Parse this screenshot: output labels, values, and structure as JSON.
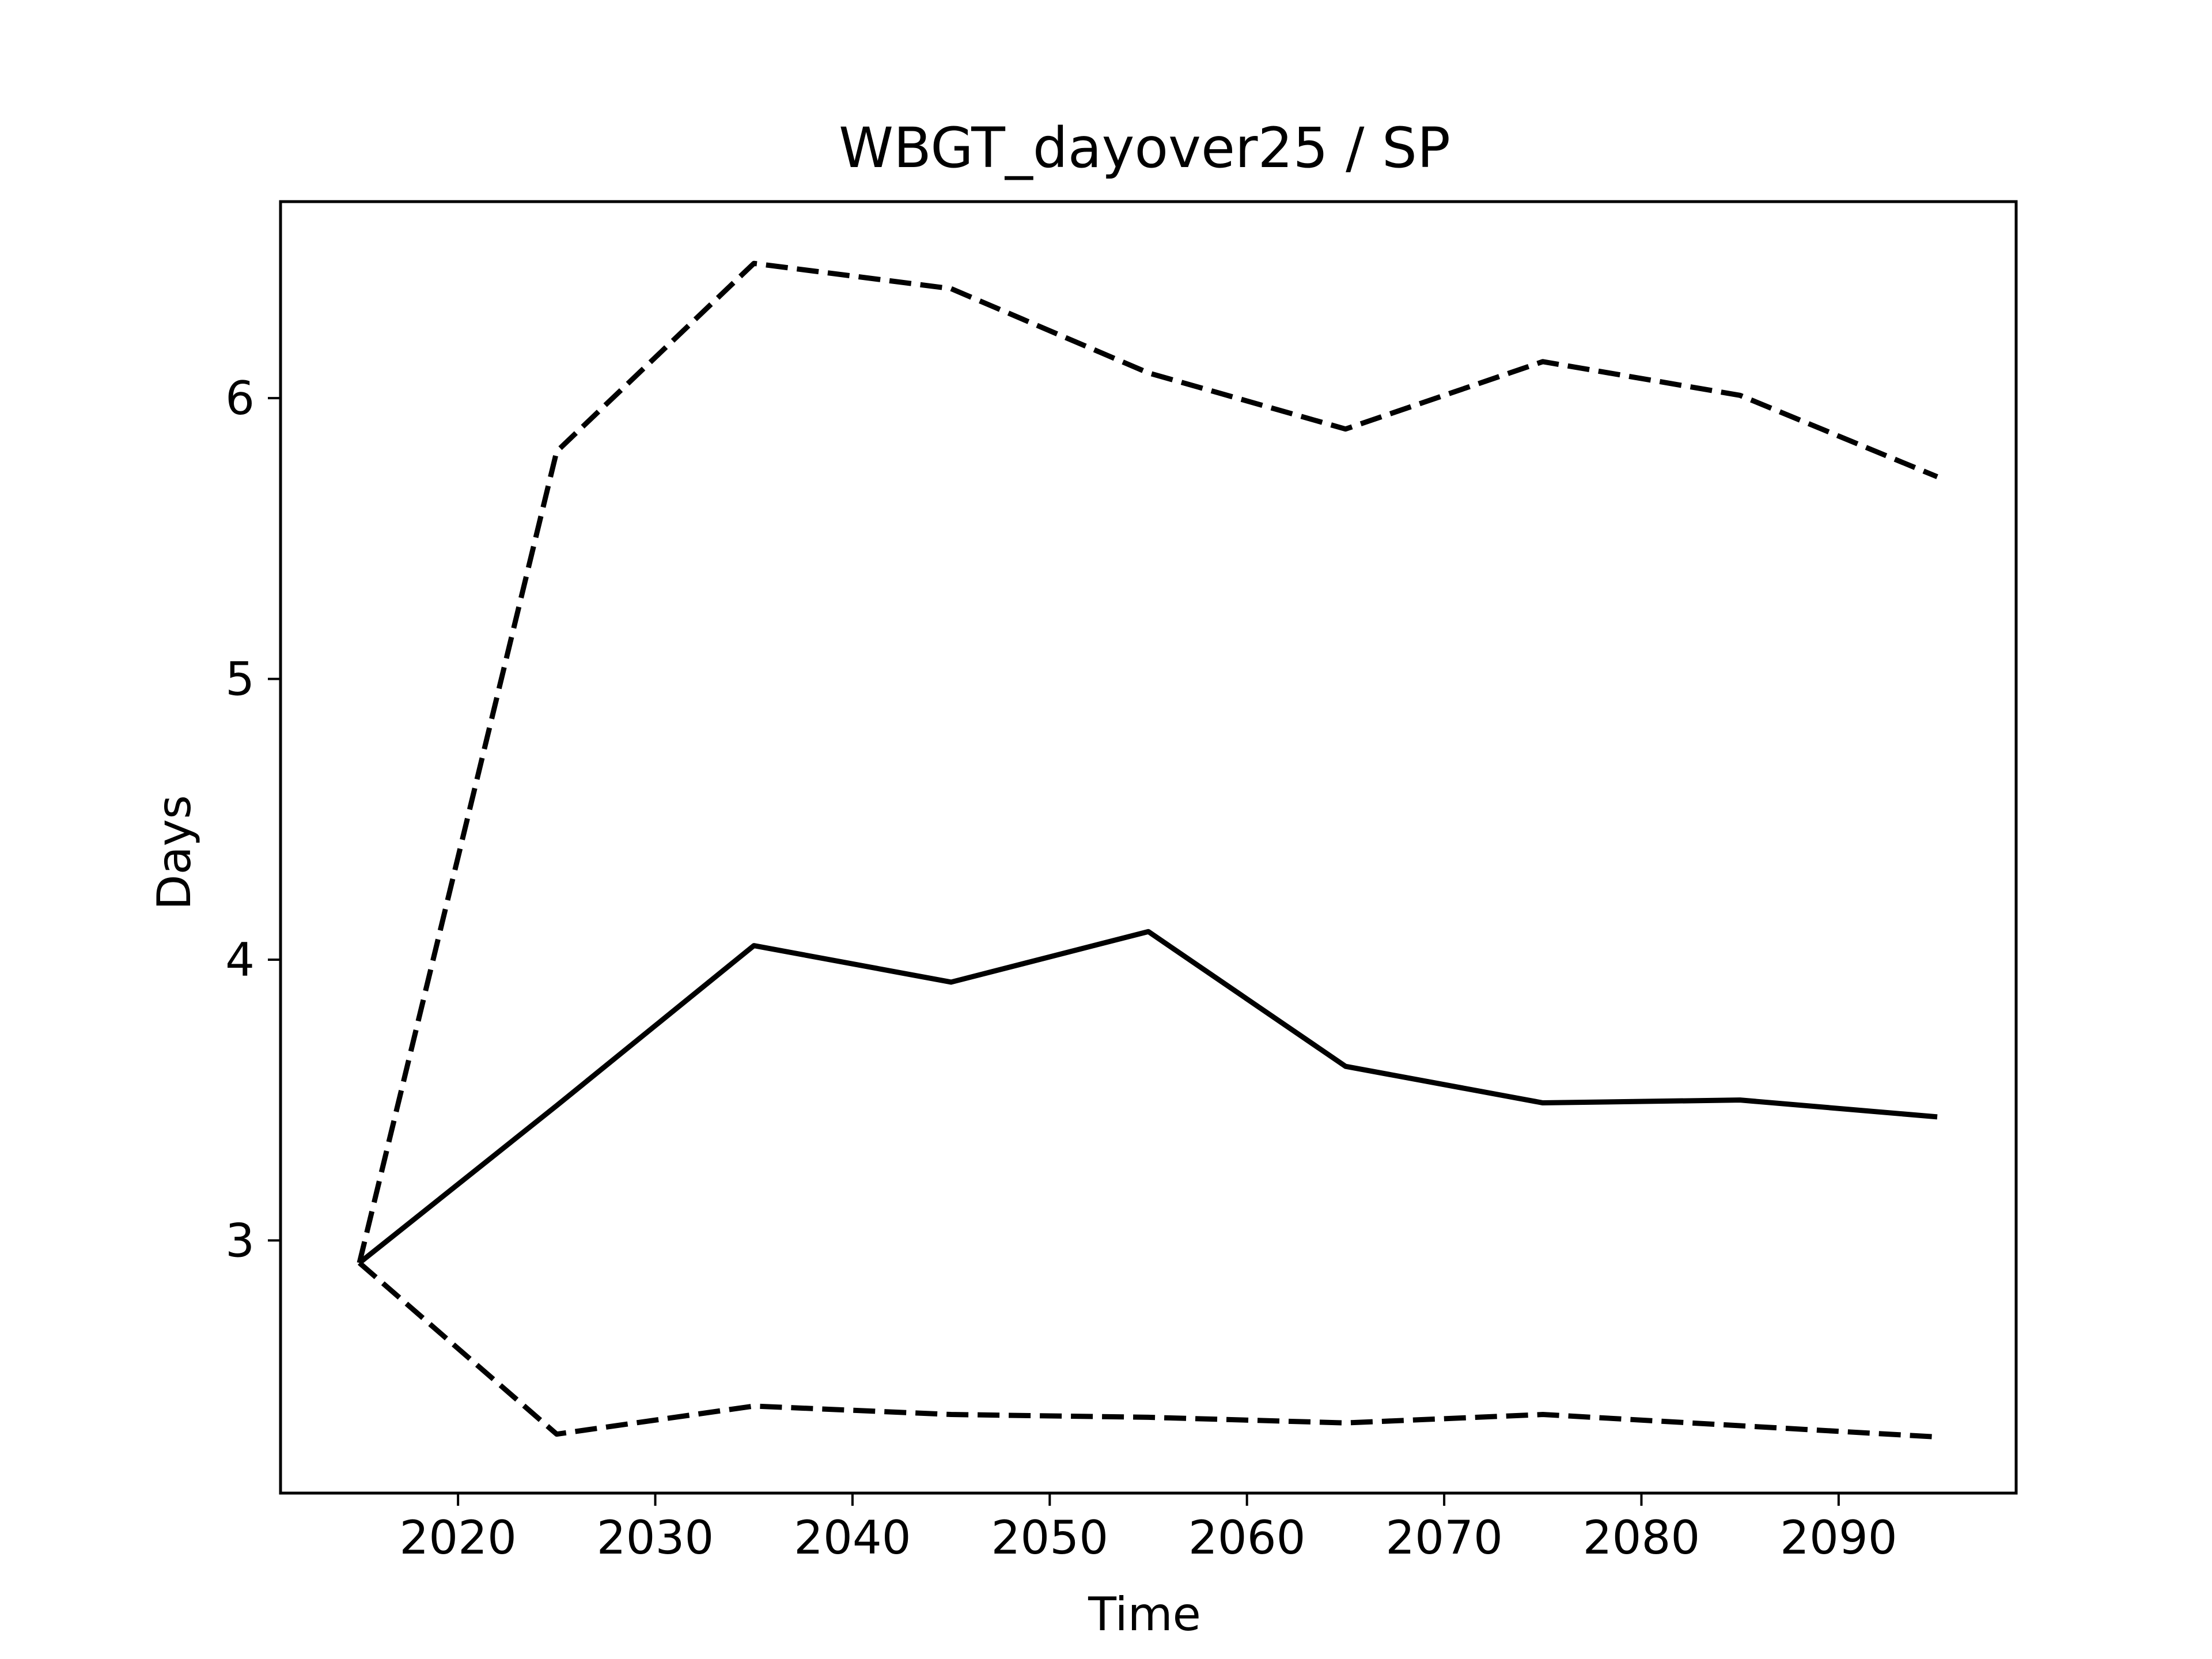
{
  "chart_data": {
    "type": "line",
    "title": "WBGT_dayover25 / SP",
    "xlabel": "Time",
    "ylabel": "Days",
    "xlim": [
      2011,
      2099
    ],
    "ylim": [
      2.1,
      6.7
    ],
    "xticks": [
      2020,
      2030,
      2040,
      2050,
      2060,
      2070,
      2080,
      2090
    ],
    "yticks": [
      3,
      4,
      5,
      6
    ],
    "grid": false,
    "x": [
      2015,
      2025,
      2035,
      2045,
      2055,
      2065,
      2075,
      2085,
      2095
    ],
    "series": [
      {
        "style": "solid",
        "values": [
          2.92,
          3.48,
          4.05,
          3.92,
          4.1,
          3.62,
          3.49,
          3.5,
          3.44
        ]
      },
      {
        "style": "dashed",
        "values": [
          2.92,
          5.81,
          6.48,
          6.39,
          6.09,
          5.89,
          6.13,
          6.01,
          5.72
        ]
      },
      {
        "style": "dashed",
        "values": [
          2.92,
          2.31,
          2.41,
          2.38,
          2.37,
          2.35,
          2.38,
          2.34,
          2.3
        ]
      }
    ],
    "colors": {
      "line": "#000000",
      "frame": "#000000",
      "background": "#ffffff"
    }
  }
}
